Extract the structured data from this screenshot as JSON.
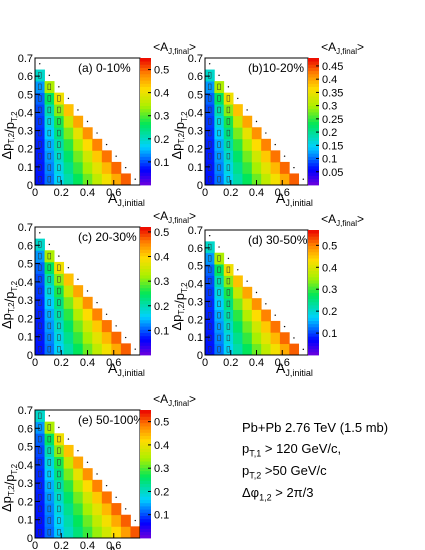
{
  "info_text": {
    "line1": "Pb+Pb 2.76 TeV (1.5 mb)",
    "line2_main": "p",
    "line2_sub": "T,1",
    "line2_rest": " > 120 GeV/c,",
    "line3_main": "p",
    "line3_sub": "T,2",
    "line3_rest": " >50 GeV/c",
    "line4_main": "Δφ",
    "line4_sub": "1,2",
    "line4_rest": " > 2π/3"
  },
  "chart_data": [
    {
      "type": "heatmap",
      "title": "(a)  0-10%",
      "xlabel": "A_J,initial",
      "ylabel": "Δp_T,2/p_T,2",
      "zlabel": "<A_J,final>",
      "xlim": [
        0,
        0.8
      ],
      "ylim": [
        0,
        0.7
      ],
      "zlim": [
        0,
        0.55
      ],
      "x_ticks": [
        "0",
        "0.2",
        "0.4",
        "0.6"
      ],
      "y_ticks": [
        "0",
        "0.1",
        "0.2",
        "0.3",
        "0.4",
        "0.5",
        "0.6",
        "0.7"
      ],
      "z_ticks": [
        "0.1",
        "0.2",
        "0.3",
        "0.4",
        "0.5"
      ]
    },
    {
      "type": "heatmap",
      "title": "(b)10-20%",
      "xlabel": "A_J,initial",
      "ylabel": "Δp_T,2/p_T,2",
      "zlabel": "<A_J,final>",
      "xlim": [
        0,
        0.8
      ],
      "ylim": [
        0,
        0.7
      ],
      "zlim": [
        0,
        0.48
      ],
      "x_ticks": [
        "0",
        "0.2",
        "0.4",
        "0.6"
      ],
      "y_ticks": [
        "0",
        "0.1",
        "0.2",
        "0.3",
        "0.4",
        "0.5",
        "0.6",
        "0.7"
      ],
      "z_ticks": [
        "0.05",
        "0.1",
        "0.15",
        "0.2",
        "0.25",
        "0.3",
        "0.35",
        "0.4",
        "0.45"
      ]
    },
    {
      "type": "heatmap",
      "title": "(c) 20-30%",
      "xlabel": "A_J,initial",
      "ylabel": "Δp_T,2/p_T,2",
      "zlabel": "<A_J,final>",
      "xlim": [
        0,
        0.8
      ],
      "ylim": [
        0,
        0.7
      ],
      "zlim": [
        0,
        0.52
      ],
      "x_ticks": [
        "0",
        "0.2",
        "0.4",
        "0.6"
      ],
      "y_ticks": [
        "0",
        "0.1",
        "0.2",
        "0.3",
        "0.4",
        "0.5",
        "0.6",
        "0.7"
      ],
      "z_ticks": [
        "0.1",
        "0.2",
        "0.3",
        "0.4",
        "0.5"
      ]
    },
    {
      "type": "heatmap",
      "title": "(d) 30-50%",
      "xlabel": "A_J,initial",
      "ylabel": "Δp_T,2/p_T,2",
      "zlabel": "<A_J,final>",
      "xlim": [
        0,
        0.8
      ],
      "ylim": [
        0,
        0.7
      ],
      "zlim": [
        0,
        0.57
      ],
      "x_ticks": [
        "0",
        "0.2",
        "0.4",
        "0.6"
      ],
      "y_ticks": [
        "0",
        "0.1",
        "0.2",
        "0.3",
        "0.4",
        "0.5",
        "0.6",
        "0.7"
      ],
      "z_ticks": [
        "0.1",
        "0.2",
        "0.3",
        "0.4",
        "0.5"
      ]
    },
    {
      "type": "heatmap",
      "title": "(e) 50-100%",
      "xlabel": "A_J,initial",
      "ylabel": "Δp_T,2/p_T,2",
      "zlabel": "<A_J,final>",
      "xlim": [
        0,
        0.8
      ],
      "ylim": [
        0,
        0.7
      ],
      "zlim": [
        0,
        0.55
      ],
      "x_ticks": [
        "0",
        "0.2",
        "0.4",
        "0.6"
      ],
      "y_ticks": [
        "0",
        "0.1",
        "0.2",
        "0.3",
        "0.4",
        "0.5",
        "0.6",
        "0.7"
      ],
      "z_ticks": [
        "0.1",
        "0.2",
        "0.3",
        "0.4",
        "0.5"
      ]
    }
  ]
}
